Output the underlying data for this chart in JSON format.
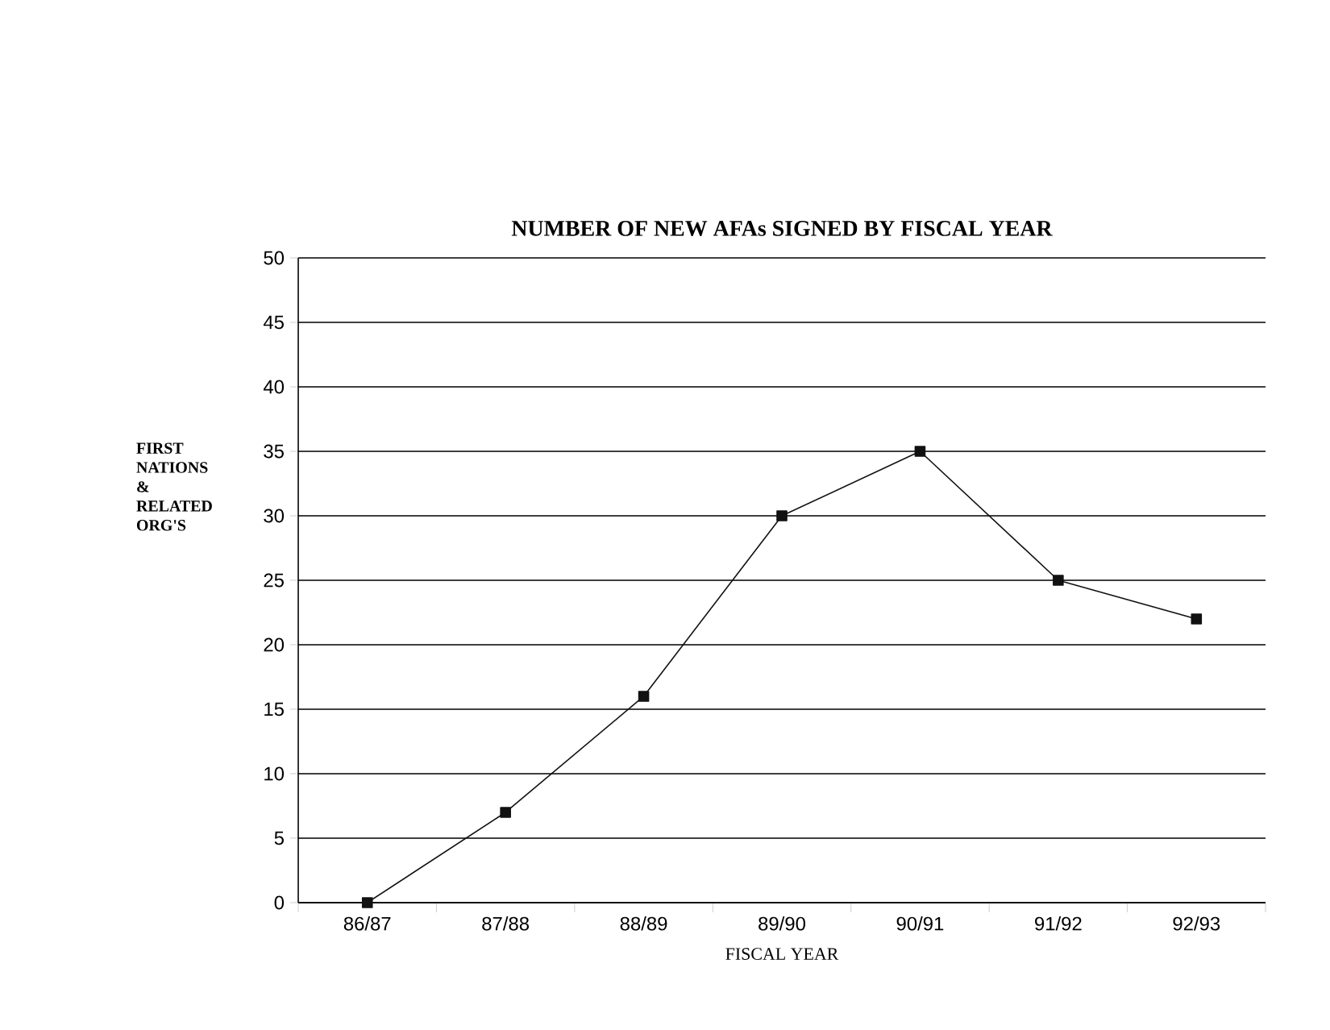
{
  "chart_data": {
    "type": "line",
    "title": "NUMBER OF NEW AFAs SIGNED BY FISCAL YEAR",
    "xlabel": "FISCAL YEAR",
    "ylabel": "FIRST NATIONS & RELATED ORG'S",
    "categories": [
      "86/87",
      "87/88",
      "88/89",
      "89/90",
      "90/91",
      "91/92",
      "92/93"
    ],
    "values": [
      0,
      7,
      16,
      30,
      35,
      25,
      22
    ],
    "color": "#111111",
    "ylim": [
      0,
      50
    ],
    "yticks": [
      0,
      5,
      10,
      15,
      20,
      25,
      30,
      35,
      40,
      45,
      50
    ],
    "grid": "y",
    "marker": "square",
    "line_style": "solid"
  }
}
